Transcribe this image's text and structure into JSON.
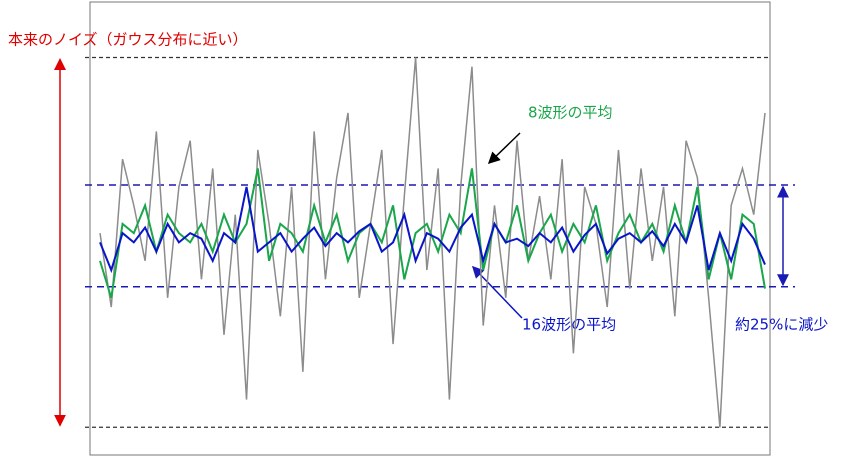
{
  "chart_data": {
    "type": "line",
    "title": "本来のノイズ（ガウス分布に近い）",
    "annotations": [
      "8波形の平均",
      "16波形の平均",
      "約25%に減少"
    ],
    "x": [
      0,
      1,
      2,
      3,
      4,
      5,
      6,
      7,
      8,
      9,
      10,
      11,
      12,
      13,
      14,
      15,
      16,
      17,
      18,
      19,
      20,
      21,
      22,
      23,
      24,
      25,
      26,
      27,
      28,
      29,
      30,
      31,
      32,
      33,
      34,
      35,
      36,
      37,
      38,
      39,
      40,
      41,
      42,
      43,
      44,
      45,
      46,
      47,
      48,
      49,
      50,
      51,
      52,
      53,
      54,
      55,
      56,
      57,
      58,
      59
    ],
    "xlim": [
      0,
      59
    ],
    "ylim": [
      -1.15,
      1.3
    ],
    "series": [
      {
        "color": "#8c8c8c",
        "values": [
          0.05,
          -0.35,
          0.45,
          0.2,
          -0.1,
          0.6,
          -0.3,
          0.3,
          0.55,
          -0.2,
          0.4,
          -0.5,
          0.15,
          -0.85,
          0.5,
          0.1,
          -0.4,
          0.3,
          -0.7,
          0.6,
          -0.2,
          0.35,
          0.7,
          -0.3,
          0.1,
          0.5,
          -0.55,
          0.25,
          1.0,
          -0.15,
          0.4,
          -0.85,
          0.3,
          0.95,
          -0.45,
          0.2,
          -0.3,
          0.55,
          -0.1,
          0.25,
          -0.2,
          0.45,
          -0.6,
          0.3,
          0.1,
          -0.35,
          0.5,
          -0.25,
          0.4,
          -0.1,
          0.3,
          -0.4,
          0.55,
          0.35,
          -0.3,
          -1.0,
          0.2,
          0.4,
          0.15,
          0.7
        ]
      },
      {
        "color": "#1aa64a",
        "values": [
          -0.1,
          -0.3,
          0.1,
          0.05,
          0.2,
          -0.05,
          0.15,
          0.05,
          0.0,
          0.1,
          -0.05,
          0.15,
          0.0,
          0.1,
          0.4,
          -0.1,
          0.1,
          0.05,
          -0.05,
          0.2,
          0.0,
          0.15,
          -0.1,
          0.05,
          0.1,
          0.0,
          0.2,
          -0.2,
          0.05,
          0.1,
          -0.05,
          0.15,
          0.05,
          0.4,
          -0.15,
          0.1,
          0.0,
          0.2,
          -0.1,
          0.05,
          0.15,
          -0.05,
          0.1,
          0.0,
          0.2,
          -0.1,
          0.05,
          0.15,
          0.0,
          0.1,
          -0.05,
          0.2,
          0.0,
          0.3,
          -0.2,
          0.05,
          -0.2,
          0.15,
          0.1,
          -0.25
        ]
      },
      {
        "color": "#0a14c8",
        "values": [
          0.0,
          -0.15,
          0.05,
          0.0,
          0.08,
          -0.05,
          0.1,
          0.0,
          0.05,
          0.02,
          -0.1,
          0.05,
          0.0,
          0.3,
          -0.05,
          0.0,
          0.05,
          -0.05,
          0.02,
          0.08,
          -0.02,
          0.05,
          0.0,
          0.06,
          0.1,
          -0.05,
          0.0,
          0.15,
          -0.1,
          0.05,
          0.02,
          -0.05,
          0.08,
          0.15,
          -0.1,
          0.1,
          0.0,
          0.02,
          -0.02,
          0.05,
          0.0,
          0.08,
          -0.05,
          0.04,
          0.1,
          -0.06,
          0.02,
          0.05,
          0.0,
          0.06,
          -0.02,
          0.1,
          0.0,
          0.2,
          -0.15,
          0.05,
          -0.1,
          0.1,
          0.02,
          -0.12
        ]
      }
    ],
    "hlines": [
      {
        "value": 1,
        "color": "#333333"
      },
      {
        "value": -1,
        "color": "#333333"
      },
      {
        "value": 0.31,
        "color": "#1a1ab4"
      },
      {
        "value": -0.24,
        "color": "#1a1ab4"
      }
    ]
  }
}
